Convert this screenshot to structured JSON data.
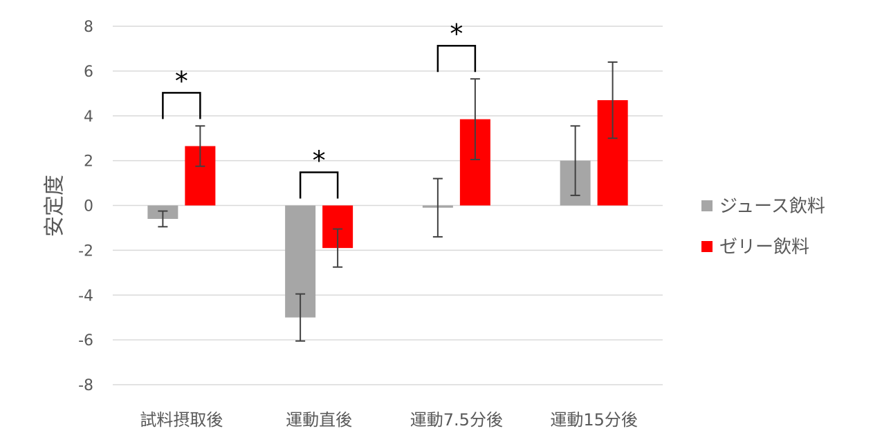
{
  "chart_data": {
    "type": "bar",
    "ylabel": "安定度",
    "ylim": [
      -8,
      8
    ],
    "yticks": [
      8,
      6,
      4,
      2,
      0,
      -2,
      -4,
      -6,
      -8
    ],
    "grid": true,
    "legend_position": "right",
    "categories": [
      "試料摂取後",
      "運動直後",
      "運動7.5分後",
      "運動15分後"
    ],
    "series": [
      {
        "name": "ジュース飲料",
        "color": "#a6a6a6",
        "values": [
          -0.6,
          -5.0,
          -0.1,
          2.0
        ],
        "errors": [
          0.35,
          1.05,
          1.3,
          1.55
        ]
      },
      {
        "name": "ゼリー飲料",
        "color": "#ff0000",
        "values": [
          2.65,
          -1.9,
          3.85,
          4.7
        ],
        "errors": [
          0.9,
          0.85,
          1.8,
          1.7
        ]
      }
    ],
    "significance": [
      {
        "category_index": 0,
        "label": "*"
      },
      {
        "category_index": 1,
        "label": "*"
      },
      {
        "category_index": 2,
        "label": "*"
      }
    ]
  }
}
